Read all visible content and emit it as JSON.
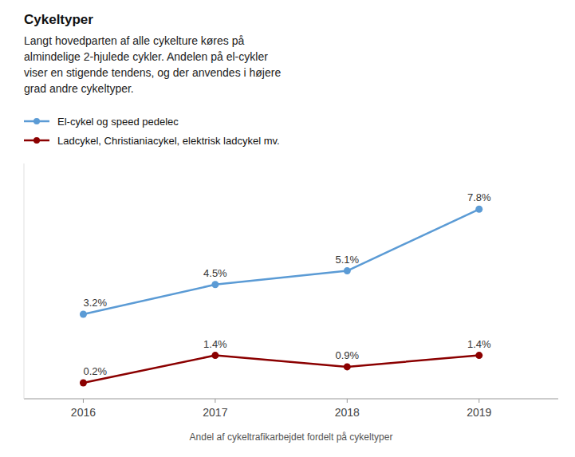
{
  "chart_data": {
    "type": "line",
    "title": "Cykeltyper",
    "subtitle": "Langt hovedparten af alle cykelture køres på\nalmindelige 2-hjulede cykler. Andelen på el-cykler\nviser en stigende tendens, og der anvendes i højere\ngrad andre cykeltyper.",
    "xlabel": "Andel af cykeltrafikarbejdet fordelt på cykeltyper",
    "x": [
      2016,
      2017,
      2018,
      2019
    ],
    "xlim": [
      2015.55,
      2019.6
    ],
    "xticks": [
      2016,
      2017,
      2018,
      2019
    ],
    "ylim": [
      -0.5,
      9.8
    ],
    "tick_labels": "x",
    "grid": false,
    "legend": "upper left",
    "data_labels": true,
    "series": [
      {
        "name": "El-cykel og speed pedelec",
        "color": "#5B9BD5",
        "marker": "circle",
        "values": [
          3.2,
          4.5,
          5.1,
          7.8
        ],
        "value_labels": [
          "3.2%",
          "4.5%",
          "5.1%",
          "7.8%"
        ]
      },
      {
        "name": "Ladcykel, Christianiacykel, elektrisk ladcykel mv.",
        "color": "#8B0000",
        "marker": "circle",
        "values": [
          0.2,
          1.4,
          0.9,
          1.4
        ],
        "value_labels": [
          "0.2%",
          "1.4%",
          "0.9%",
          "1.4%"
        ]
      }
    ]
  }
}
